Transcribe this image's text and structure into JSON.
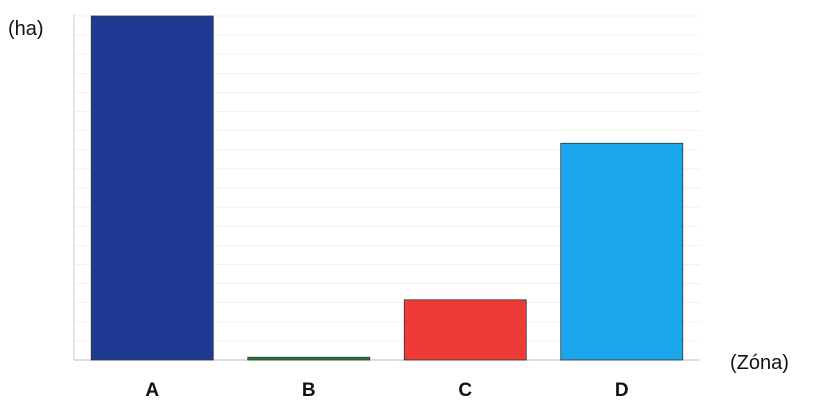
{
  "chart_data": {
    "type": "bar",
    "categories": [
      "A",
      "B",
      "C",
      "D"
    ],
    "values": [
      100,
      0.8,
      17.5,
      63
    ],
    "ylabel": "(ha)",
    "xlabel": "(Zóna)",
    "ylim": [
      0,
      100
    ],
    "grid": true,
    "colors": [
      "#1F3A93",
      "#2E7D32",
      "#EF3B36",
      "#1AA7EC"
    ]
  }
}
